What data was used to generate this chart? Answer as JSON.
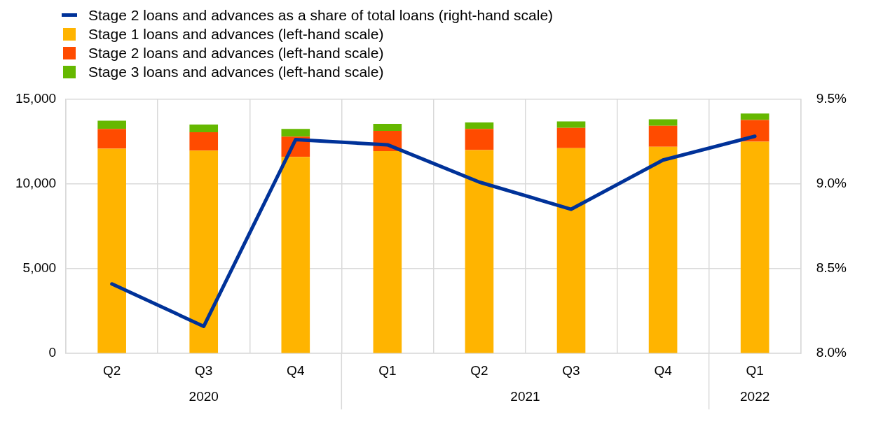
{
  "chart_data": {
    "type": "bar",
    "stacked": true,
    "grid": true,
    "legend": "top left",
    "categories": [
      "Q2",
      "Q3",
      "Q4",
      "Q1",
      "Q2",
      "Q3",
      "Q4",
      "Q1"
    ],
    "annotations": [
      "2020",
      "2021",
      "2022"
    ],
    "series": [
      {
        "name": "Stage 2 loans and advances as a share of total loans (right-hand scale)",
        "type": "line",
        "axis": "y2",
        "color": "#003299",
        "marker": "none",
        "values": [
          8.41,
          8.16,
          9.26,
          9.23,
          9.01,
          8.85,
          9.14,
          9.28
        ]
      },
      {
        "name": "Stage 1 loans and advances (left-hand scale)",
        "color": "#ffb400",
        "values": [
          12070,
          11950,
          11580,
          11920,
          11990,
          12100,
          12180,
          12480
        ]
      },
      {
        "name": "Stage 2 loans and advances (left-hand scale)",
        "color": "#ff4b00",
        "values": [
          1160,
          1090,
          1200,
          1200,
          1240,
          1200,
          1240,
          1280
        ]
      },
      {
        "name": "Stage 3 loans and advances (left-hand scale)",
        "color": "#65b800",
        "values": [
          490,
          450,
          450,
          410,
          380,
          380,
          380,
          380
        ]
      }
    ],
    "ylim": [
      0,
      15000
    ],
    "yticks": [
      {
        "value": 0,
        "label": "0"
      },
      {
        "value": 5000,
        "label": "5,000"
      },
      {
        "value": 10000,
        "label": "10,000"
      },
      {
        "value": 15000,
        "label": "15,000"
      }
    ],
    "y2lim": [
      8.0,
      9.5
    ],
    "y2ticks": [
      {
        "value": 8.0,
        "label": "8.0%"
      },
      {
        "value": 8.5,
        "label": "8.5%"
      },
      {
        "value": 9.0,
        "label": "9.0%"
      },
      {
        "value": 9.5,
        "label": "9.5%"
      }
    ]
  }
}
